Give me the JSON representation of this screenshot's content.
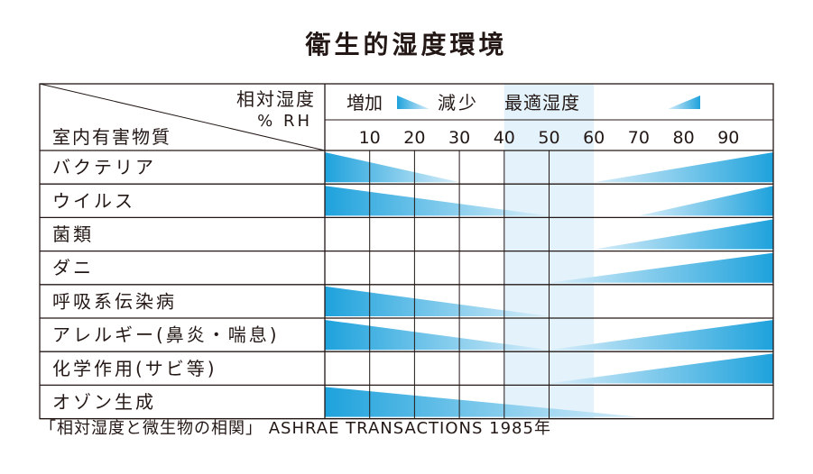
{
  "title": "衛生的湿度環境",
  "source": "「相対湿度と微生物の相関」 ASHRAE TRANSACTIONS 1985年",
  "colors": {
    "gradient_light": "#d8eefa",
    "gradient_dark": "#1ea2dc",
    "band": "#e3f2fb",
    "line": "#231815"
  },
  "chart_data": {
    "type": "table",
    "header": {
      "top_label": "相対湿度",
      "unit_label": "% RH",
      "row_label": "室内有害物質"
    },
    "legend": {
      "increase": "増加",
      "decrease": "減少",
      "optimal": "最適湿度",
      "optimal_range": [
        40,
        60
      ]
    },
    "x_ticks": [
      10,
      20,
      30,
      40,
      50,
      60,
      70,
      80,
      90
    ],
    "xlim": [
      0,
      100
    ],
    "rows": [
      {
        "name": "バクテリア",
        "low_wedge": [
          0,
          30
        ],
        "high_wedge": [
          60,
          100
        ]
      },
      {
        "name": "ウイルス",
        "low_wedge": [
          0,
          50
        ],
        "high_wedge": [
          70,
          100
        ]
      },
      {
        "name": "菌類",
        "low_wedge": null,
        "high_wedge": [
          60,
          100
        ]
      },
      {
        "name": "ダニ",
        "low_wedge": null,
        "high_wedge": [
          50,
          100
        ]
      },
      {
        "name": "呼吸系伝染病",
        "low_wedge": [
          0,
          50
        ],
        "high_wedge": null
      },
      {
        "name": "アレルギー(鼻炎・喘息)",
        "low_wedge": [
          0,
          50
        ],
        "high_wedge": [
          50,
          100
        ]
      },
      {
        "name": "化学作用(サビ等)",
        "low_wedge": null,
        "high_wedge": [
          50,
          100
        ]
      },
      {
        "name": "オゾン生成",
        "low_wedge": [
          0,
          70
        ],
        "high_wedge": null
      }
    ]
  }
}
